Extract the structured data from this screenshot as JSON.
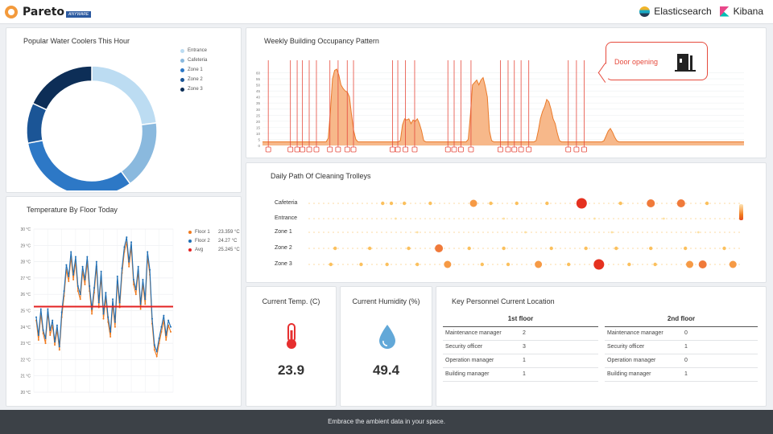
{
  "header": {
    "brand_name": "Pareto",
    "brand_tag": "ANYWARE",
    "partner1": "Elasticsearch",
    "partner2": "Kibana"
  },
  "water_coolers": {
    "title": "Popular Water Coolers This Hour",
    "chart_data": {
      "type": "pie",
      "donut": true,
      "categories": [
        "Entrance",
        "Cafeteria",
        "Zone 1",
        "Zone 2",
        "Zone 3"
      ],
      "values": [
        23,
        17,
        32,
        10,
        18
      ],
      "colors": [
        "#bcdcf2",
        "#8ab9de",
        "#2d78c6",
        "#1b5596",
        "#0d2e57"
      ],
      "legend_position": "top-right"
    }
  },
  "occupancy": {
    "title": "Weekly Building Occupancy Pattern",
    "callout_text": "Door opening",
    "chart_data": {
      "type": "area",
      "ylim": [
        0,
        65
      ],
      "yticks": [
        "0",
        "5",
        "10",
        "15",
        "20",
        "25",
        "30",
        "35",
        "40",
        "45",
        "50",
        "55",
        "60"
      ],
      "series": [
        {
          "values": [
            3,
            3,
            3,
            3,
            3,
            3,
            3,
            3,
            3,
            3,
            3,
            3,
            3,
            3,
            3,
            3,
            3,
            3,
            3,
            3,
            3,
            3,
            3,
            3,
            3,
            3,
            3,
            3,
            3,
            3,
            3,
            6,
            28,
            55,
            62,
            63,
            58,
            50,
            47,
            45,
            44,
            40,
            25,
            12,
            5,
            3,
            3,
            3,
            3,
            3,
            3,
            3,
            3,
            3,
            3,
            3,
            3,
            3,
            3,
            3,
            3,
            3,
            3,
            3,
            3,
            4,
            17,
            22,
            21,
            22,
            18,
            21,
            20,
            22,
            18,
            12,
            4,
            3,
            3,
            3,
            3,
            3,
            3,
            3,
            3,
            3,
            3,
            3,
            3,
            3,
            3,
            3,
            3,
            3,
            3,
            3,
            3,
            5,
            25,
            50,
            52,
            54,
            50,
            54,
            56,
            49,
            40,
            12,
            4,
            3,
            3,
            3,
            3,
            3,
            3,
            3,
            3,
            3,
            3,
            3,
            3,
            3,
            3,
            3,
            3,
            3,
            3,
            3,
            3,
            4,
            12,
            22,
            28,
            32,
            38,
            36,
            30,
            22,
            18,
            10,
            4,
            3,
            3,
            3,
            3,
            3,
            3,
            3,
            3,
            3,
            3,
            3,
            3,
            3,
            3,
            3,
            3,
            3,
            3,
            3,
            3,
            4,
            8,
            12,
            14,
            11,
            7,
            4,
            3,
            3,
            3,
            3,
            3,
            3,
            3,
            3,
            3,
            3,
            3,
            3,
            3,
            3,
            3,
            3,
            3,
            3,
            3,
            3,
            3,
            3,
            3,
            3,
            3,
            3,
            3,
            3,
            3,
            3,
            3,
            3,
            3,
            3,
            3,
            3,
            3,
            3,
            3,
            3,
            3,
            3,
            3,
            3,
            3,
            3,
            3,
            3,
            3,
            3,
            3,
            3,
            3,
            3,
            3,
            3,
            3,
            3,
            3,
            3
          ]
        }
      ],
      "event_marker_count": 26,
      "event_marker_label": "Door opening"
    }
  },
  "trolleys": {
    "title": "Daily Path Of Cleaning Trolleys",
    "chart_data": {
      "type": "scatter",
      "categories": [
        "Cafeteria",
        "Entrance",
        "Zone 1",
        "Zone 2",
        "Zone 3"
      ],
      "series": [
        {
          "row": "Cafeteria",
          "points": [
            [
              0.17,
              2
            ],
            [
              0.19,
              2
            ],
            [
              0.22,
              2
            ],
            [
              0.28,
              2
            ],
            [
              0.38,
              3
            ],
            [
              0.42,
              2
            ],
            [
              0.48,
              2
            ],
            [
              0.55,
              2
            ],
            [
              0.63,
              5
            ],
            [
              0.72,
              2
            ],
            [
              0.79,
              4
            ],
            [
              0.86,
              4
            ],
            [
              0.92,
              2
            ]
          ]
        },
        {
          "row": "Entrance",
          "points": [
            [
              0.2,
              1
            ],
            [
              0.45,
              1
            ],
            [
              0.66,
              1
            ],
            [
              0.82,
              1
            ]
          ]
        },
        {
          "row": "Zone 1",
          "points": [
            [
              0.25,
              1
            ],
            [
              0.5,
              1
            ],
            [
              0.7,
              1
            ],
            [
              0.9,
              1
            ]
          ]
        },
        {
          "row": "Zone 2",
          "points": [
            [
              0.06,
              2
            ],
            [
              0.14,
              2
            ],
            [
              0.23,
              2
            ],
            [
              0.3,
              4
            ],
            [
              0.37,
              2
            ],
            [
              0.45,
              2
            ],
            [
              0.56,
              2
            ],
            [
              0.64,
              2
            ],
            [
              0.71,
              2
            ],
            [
              0.79,
              2
            ],
            [
              0.87,
              2
            ],
            [
              0.96,
              2
            ]
          ]
        },
        {
          "row": "Zone 3",
          "points": [
            [
              0.05,
              2
            ],
            [
              0.12,
              2
            ],
            [
              0.18,
              2
            ],
            [
              0.25,
              2
            ],
            [
              0.32,
              3
            ],
            [
              0.4,
              2
            ],
            [
              0.46,
              2
            ],
            [
              0.53,
              3
            ],
            [
              0.6,
              2
            ],
            [
              0.67,
              5
            ],
            [
              0.74,
              2
            ],
            [
              0.8,
              2
            ],
            [
              0.88,
              3
            ],
            [
              0.91,
              4
            ],
            [
              0.98,
              3
            ]
          ]
        }
      ]
    }
  },
  "temperature": {
    "title": "Temperature By Floor Today",
    "legend": [
      {
        "name": "Floor 1",
        "value": "23.359 °C",
        "color": "#f07a1e"
      },
      {
        "name": "Floor 2",
        "value": "24.27 °C",
        "color": "#1f6fb5"
      },
      {
        "name": "Avg",
        "value": "25.245 °C",
        "color": "#e32222"
      }
    ],
    "chart_data": {
      "type": "line",
      "ylim": [
        20,
        30
      ],
      "yticks": [
        "20 °C",
        "21 °C",
        "22 °C",
        "23 °C",
        "24 °C",
        "25 °C",
        "26 °C",
        "27 °C",
        "28 °C",
        "29 °C",
        "30 °C"
      ],
      "series": [
        {
          "name": "Floor 1",
          "values": [
            24.4,
            23.2,
            24.8,
            23.6,
            23.0,
            24.9,
            23.5,
            24.1,
            22.9,
            23.8,
            22.6,
            24.6,
            25.9,
            27.5,
            26.8,
            28.3,
            26.9,
            28.0,
            26.2,
            25.7,
            27.4,
            26.6,
            28.0,
            26.2,
            24.8,
            26.1,
            27.7,
            25.2,
            27.1,
            24.5,
            25.8,
            24.3,
            23.4,
            25.4,
            24.0,
            26.8,
            25.2,
            27.3,
            28.6,
            29.2,
            27.7,
            28.9,
            26.6,
            26.0,
            27.4,
            25.1,
            26.6,
            25.4,
            28.3,
            27.2,
            24.2,
            22.6,
            22.2,
            23.0,
            23.7,
            24.4,
            23.2,
            24.1,
            23.7
          ]
        },
        {
          "name": "Floor 2",
          "values": [
            24.6,
            23.5,
            25.1,
            23.8,
            23.3,
            25.1,
            23.8,
            24.4,
            23.1,
            24.1,
            22.8,
            24.9,
            26.2,
            27.8,
            27.1,
            28.6,
            27.2,
            28.3,
            26.5,
            26.0,
            27.7,
            26.9,
            28.3,
            26.5,
            25.1,
            26.4,
            28.0,
            25.5,
            27.4,
            24.8,
            26.1,
            24.6,
            23.7,
            25.7,
            24.3,
            27.1,
            25.5,
            27.6,
            28.9,
            29.5,
            28.0,
            29.2,
            26.9,
            26.3,
            27.7,
            25.4,
            26.9,
            25.7,
            28.6,
            27.5,
            24.5,
            22.9,
            22.5,
            23.3,
            24.0,
            24.7,
            23.5,
            24.4,
            24.0
          ]
        },
        {
          "name": "Avg",
          "values": [
            25.245,
            25.245
          ]
        }
      ]
    }
  },
  "current_temp": {
    "title": "Current Temp. (C)",
    "value": "23.9"
  },
  "current_humidity": {
    "title": "Current Humidity (%)",
    "value": "49.4"
  },
  "personnel": {
    "title": "Key Personnel Current Location",
    "floor1_header": "1st floor",
    "floor2_header": "2nd floor",
    "floor1_rows": [
      {
        "role": "Maintenance manager",
        "count": "2"
      },
      {
        "role": "Security officer",
        "count": "3"
      },
      {
        "role": "Operation manager",
        "count": "1"
      },
      {
        "role": "Building manager",
        "count": "1"
      }
    ],
    "floor2_rows": [
      {
        "role": "Maintenance manager",
        "count": "0"
      },
      {
        "role": "Security officer",
        "count": "1"
      },
      {
        "role": "Operation manager",
        "count": "0"
      },
      {
        "role": "Building manager",
        "count": "1"
      }
    ]
  },
  "footer": {
    "tagline": "Embrace the ambient data in your space."
  }
}
